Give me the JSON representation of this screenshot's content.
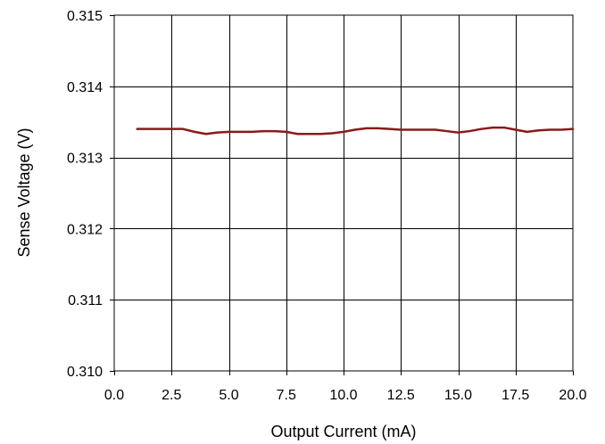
{
  "chart_data": {
    "type": "line",
    "title": "",
    "xlabel": "Output Current (mA)",
    "ylabel": "Sense Voltage (V)",
    "xlim": [
      0,
      20
    ],
    "ylim": [
      0.31,
      0.315
    ],
    "x_ticks": [
      "0.0",
      "2.5",
      "5.0",
      "7.5",
      "10.0",
      "12.5",
      "15.0",
      "17.5",
      "20.0"
    ],
    "y_ticks": [
      "0.310",
      "0.311",
      "0.312",
      "0.313",
      "0.314",
      "0.315"
    ],
    "grid": true,
    "legend": "none",
    "series": [
      {
        "color": "#8B1A1A",
        "x": [
          1.0,
          2.0,
          3.0,
          3.5,
          4.0,
          4.5,
          5.0,
          5.5,
          6.0,
          6.5,
          7.0,
          7.5,
          8.0,
          8.5,
          9.0,
          9.5,
          10.0,
          10.5,
          11.0,
          11.5,
          12.0,
          12.5,
          13.0,
          13.5,
          14.0,
          14.5,
          15.0,
          15.5,
          16.0,
          16.5,
          17.0,
          17.5,
          18.0,
          18.5,
          19.0,
          19.5,
          20.0
        ],
        "y": [
          0.3134,
          0.3134,
          0.3134,
          0.31336,
          0.31333,
          0.31335,
          0.31336,
          0.31336,
          0.31336,
          0.31337,
          0.31337,
          0.31336,
          0.31333,
          0.31333,
          0.31333,
          0.31334,
          0.31336,
          0.31339,
          0.31341,
          0.31341,
          0.3134,
          0.31339,
          0.31339,
          0.31339,
          0.31339,
          0.31337,
          0.31335,
          0.31337,
          0.3134,
          0.31342,
          0.31342,
          0.31339,
          0.31336,
          0.31338,
          0.31339,
          0.31339,
          0.3134
        ]
      }
    ]
  }
}
